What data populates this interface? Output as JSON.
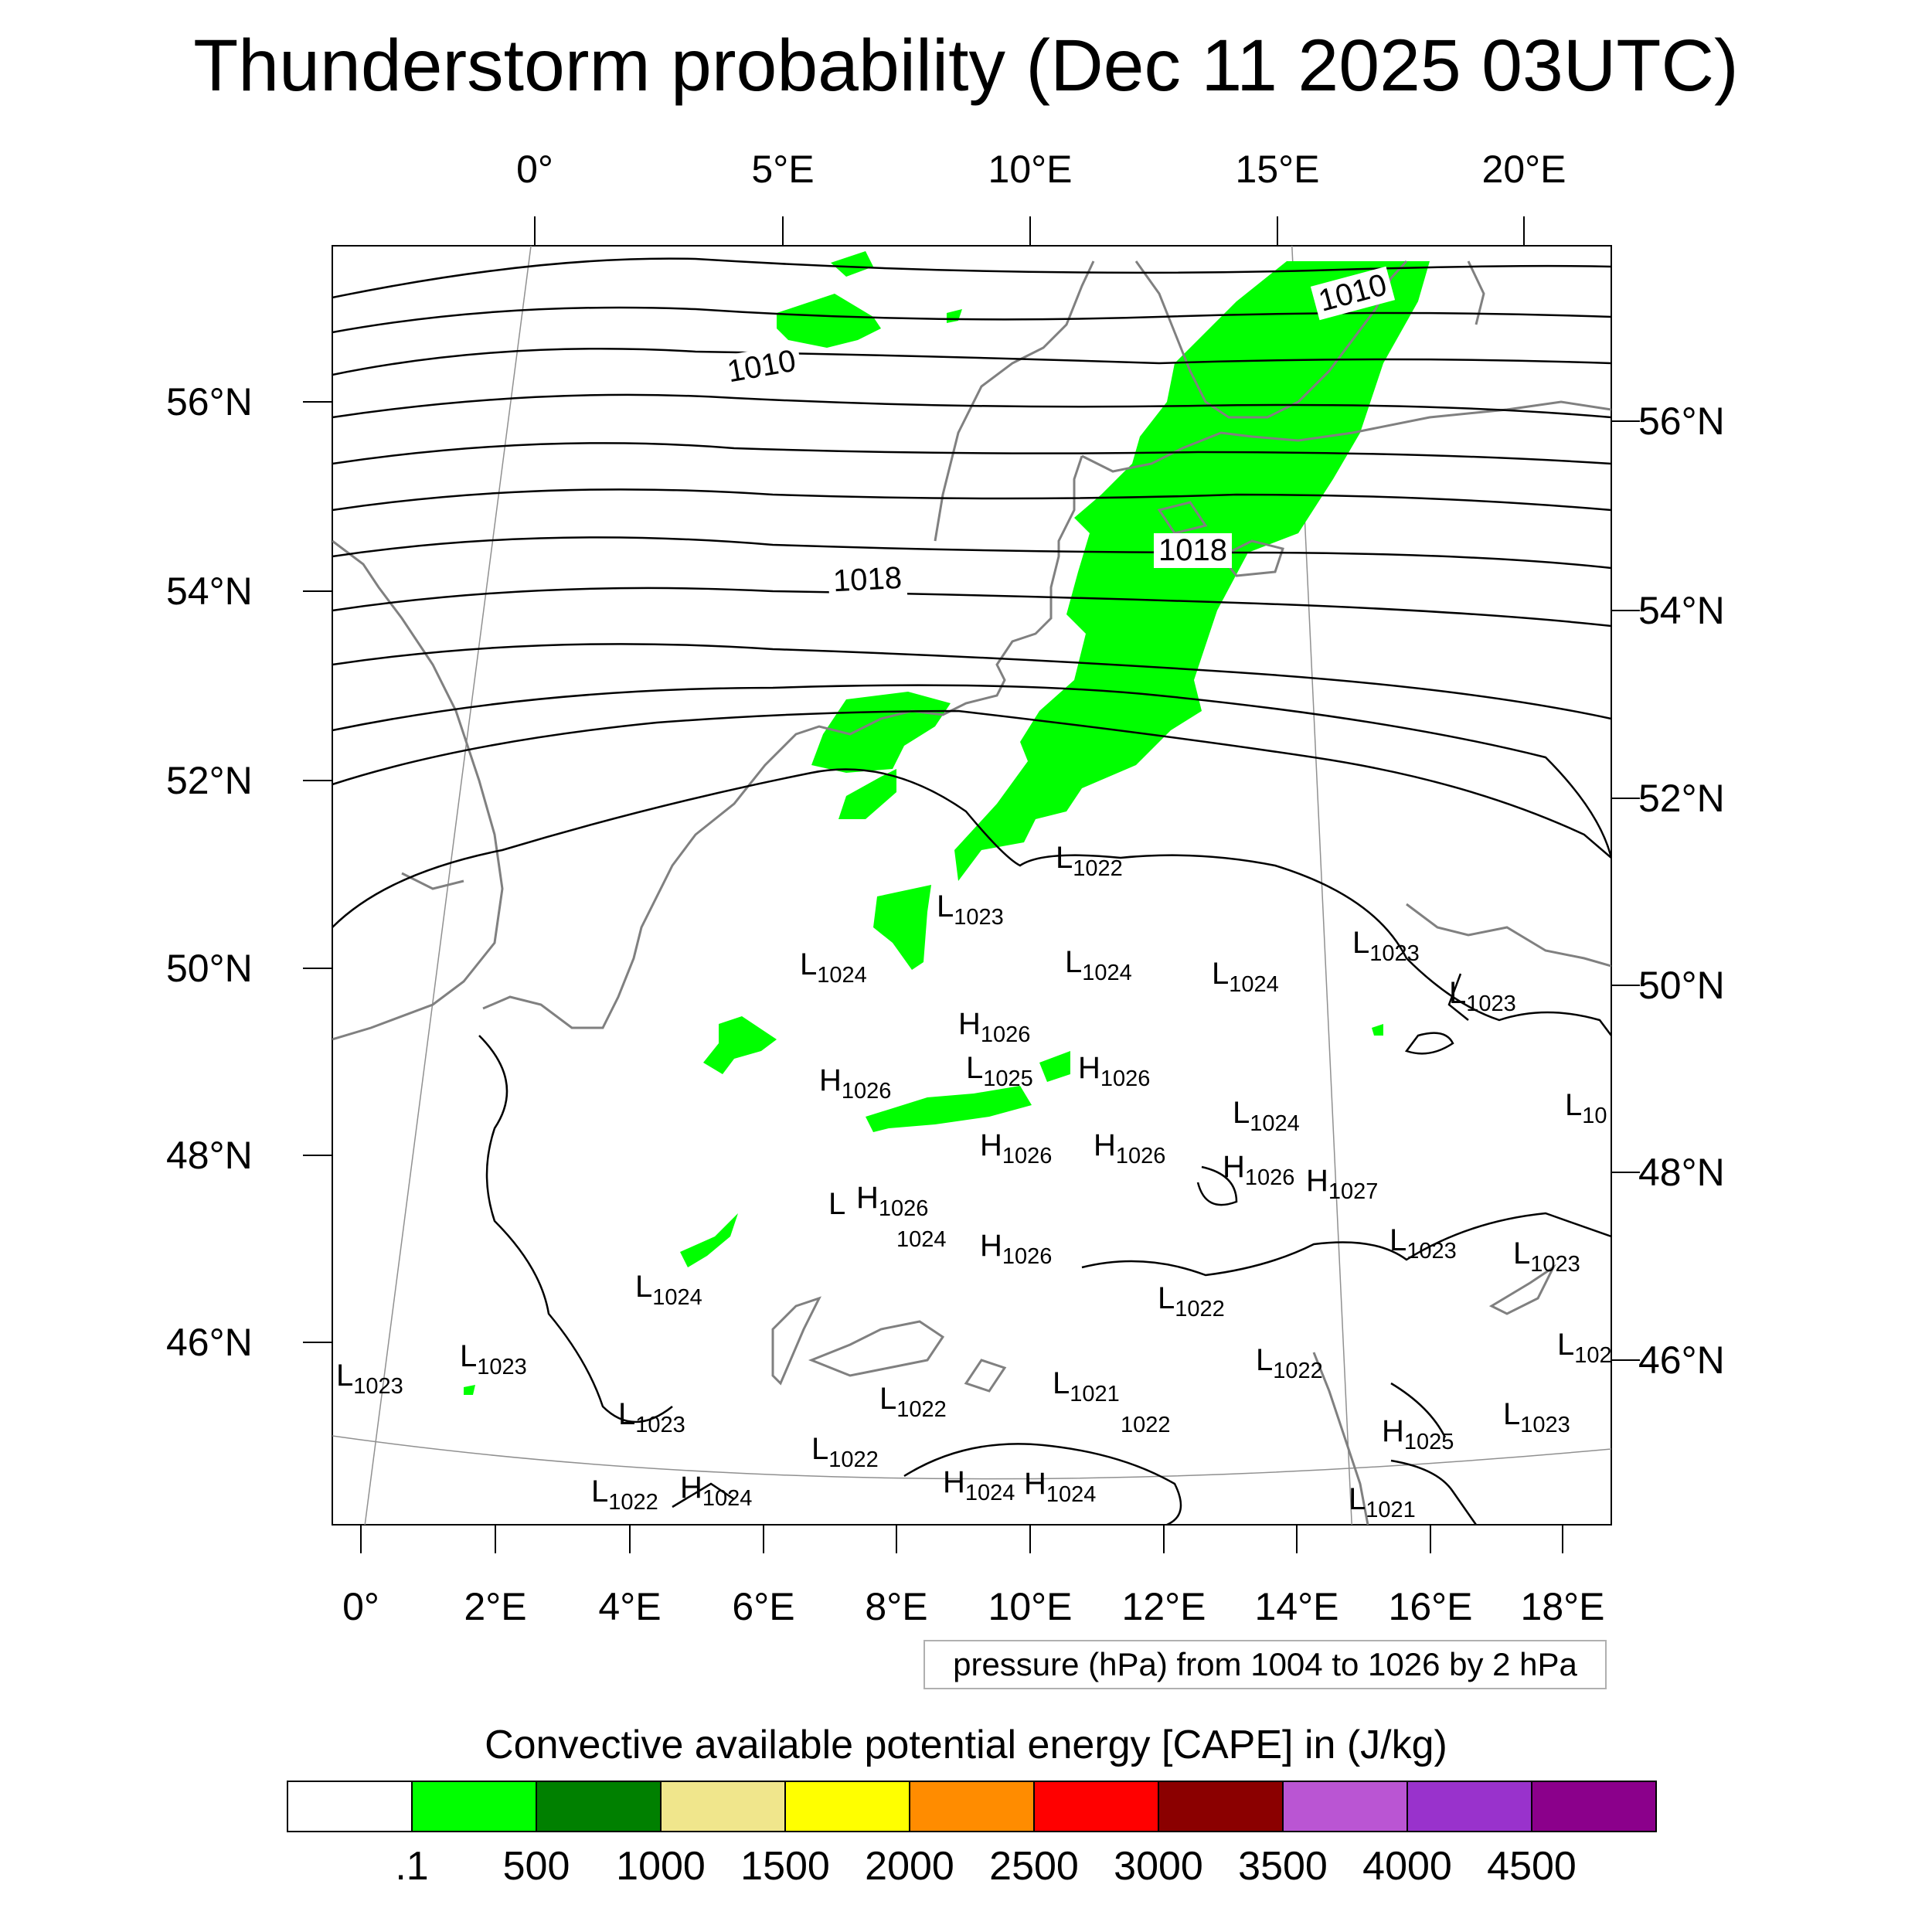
{
  "title": "Thunderstorm probability (Dec 11 2025 03UTC)",
  "colors": {
    "land_outline": "#808080",
    "isobar": "#000000",
    "cape_low": "#00ff00"
  },
  "axes": {
    "top_lon_labels": [
      "0°",
      "5°E",
      "10°E",
      "15°E",
      "20°E"
    ],
    "bottom_lon_labels": [
      "0°",
      "2°E",
      "4°E",
      "6°E",
      "8°E",
      "10°E",
      "12°E",
      "14°E",
      "16°E",
      "18°E"
    ],
    "left_lat_labels": [
      "56°N",
      "54°N",
      "52°N",
      "50°N",
      "48°N",
      "46°N"
    ],
    "right_lat_labels": [
      "56°N",
      "54°N",
      "52°N",
      "50°N",
      "48°N",
      "46°N"
    ]
  },
  "isobar_info": "pressure (hPa) from 1004 to 1026 by 2 hPa",
  "isobar_labels": [
    "1010",
    "1010",
    "1018",
    "1018"
  ],
  "pressure_centers": [
    {
      "t": "L",
      "v": "1022"
    },
    {
      "t": "L",
      "v": "1023"
    },
    {
      "t": "L",
      "v": "1024"
    },
    {
      "t": "L",
      "v": "1024"
    },
    {
      "t": "L",
      "v": "1024"
    },
    {
      "t": "L",
      "v": "1023"
    },
    {
      "t": "L",
      "v": "1023"
    },
    {
      "t": "H",
      "v": "1026"
    },
    {
      "t": "L",
      "v": "1025"
    },
    {
      "t": "H",
      "v": "1026"
    },
    {
      "t": "H",
      "v": "1026"
    },
    {
      "t": "L",
      "v": "10"
    },
    {
      "t": "L",
      "v": "1024"
    },
    {
      "t": "H",
      "v": "1026"
    },
    {
      "t": "H",
      "v": "1026"
    },
    {
      "t": "H",
      "v": "1026"
    },
    {
      "t": "H",
      "v": "1027"
    },
    {
      "t": "L",
      "v": ""
    },
    {
      "t": "H",
      "v": "1026"
    },
    {
      "t": "",
      "v": "1024"
    },
    {
      "t": "H",
      "v": "1026"
    },
    {
      "t": "L",
      "v": "1023"
    },
    {
      "t": "L",
      "v": "1023"
    },
    {
      "t": "L",
      "v": "1024"
    },
    {
      "t": "L",
      "v": "1022"
    },
    {
      "t": "L",
      "v": "102"
    },
    {
      "t": "L",
      "v": "1023"
    },
    {
      "t": "L",
      "v": "1023"
    },
    {
      "t": "L",
      "v": "1022"
    },
    {
      "t": "L",
      "v": "1023"
    },
    {
      "t": "L",
      "v": "1022"
    },
    {
      "t": "L",
      "v": "1021"
    },
    {
      "t": "",
      "v": "1022"
    },
    {
      "t": "H",
      "v": "1025"
    },
    {
      "t": "L",
      "v": "1023"
    },
    {
      "t": "L",
      "v": "1022"
    },
    {
      "t": "L",
      "v": "1022"
    },
    {
      "t": "H",
      "v": "1024"
    },
    {
      "t": "H",
      "v": "1024"
    },
    {
      "t": "H",
      "v": "1024"
    },
    {
      "t": "L",
      "v": "1021"
    }
  ],
  "colorbar": {
    "title": "Convective available potential energy [CAPE] in (J/kg)",
    "colors": [
      "#ffffff",
      "#00ff00",
      "#008000",
      "#f0e68c",
      "#ffff00",
      "#ff8c00",
      "#ff0000",
      "#8b0000",
      "#ba55d3",
      "#9932cc",
      "#8b008b"
    ],
    "labels": [
      ".1",
      "500",
      "1000",
      "1500",
      "2000",
      "2500",
      "3000",
      "3500",
      "4000",
      "4500"
    ]
  }
}
